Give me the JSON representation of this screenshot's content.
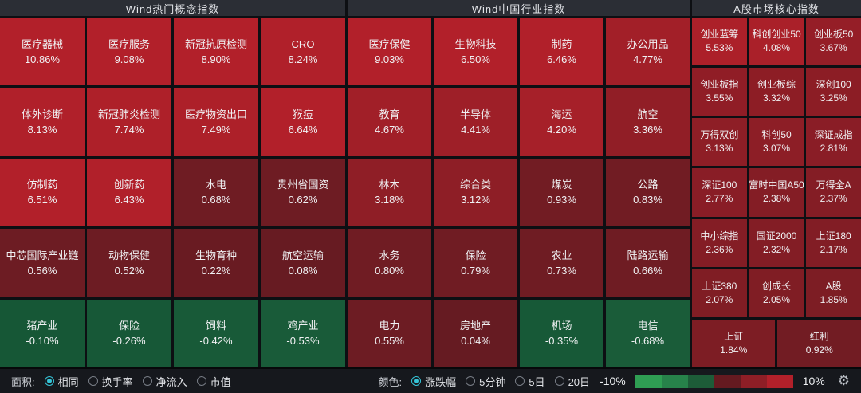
{
  "panels": [
    {
      "title": "Wind热门概念指数",
      "cells": [
        {
          "name": "医疗器械",
          "pct": "10.86%",
          "color": "#b2202a"
        },
        {
          "name": "医疗服务",
          "pct": "9.08%",
          "color": "#b2202a"
        },
        {
          "name": "新冠抗原检测",
          "pct": "8.90%",
          "color": "#b2202a"
        },
        {
          "name": "CRO",
          "pct": "8.24%",
          "color": "#b0202a"
        },
        {
          "name": "体外诊断",
          "pct": "8.13%",
          "color": "#b0202a"
        },
        {
          "name": "新冠肺炎检测",
          "pct": "7.74%",
          "color": "#ae2029"
        },
        {
          "name": "医疗物资出口",
          "pct": "7.49%",
          "color": "#ad2029"
        },
        {
          "name": "猴痘",
          "pct": "6.64%",
          "color": "#b2202a"
        },
        {
          "name": "仿制药",
          "pct": "6.51%",
          "color": "#b2202a"
        },
        {
          "name": "创新药",
          "pct": "6.43%",
          "color": "#b1202a"
        },
        {
          "name": "水电",
          "pct": "0.68%",
          "color": "#6f1c23"
        },
        {
          "name": "贵州省国资",
          "pct": "0.62%",
          "color": "#6e1c23"
        },
        {
          "name": "中芯国际产业链",
          "pct": "0.56%",
          "color": "#6d1c23"
        },
        {
          "name": "动物保健",
          "pct": "0.52%",
          "color": "#6d1c23"
        },
        {
          "name": "生物育种",
          "pct": "0.22%",
          "color": "#691b22"
        },
        {
          "name": "航空运输",
          "pct": "0.08%",
          "color": "#671b22"
        },
        {
          "name": "猪产业",
          "pct": "-0.10%",
          "color": "#165736"
        },
        {
          "name": "保险",
          "pct": "-0.26%",
          "color": "#175837"
        },
        {
          "name": "饲料",
          "pct": "-0.42%",
          "color": "#185a38"
        },
        {
          "name": "鸡产业",
          "pct": "-0.53%",
          "color": "#195b39"
        }
      ]
    },
    {
      "title": "Wind中国行业指数",
      "cells": [
        {
          "name": "医疗保健",
          "pct": "9.03%",
          "color": "#b2202a"
        },
        {
          "name": "生物科技",
          "pct": "6.50%",
          "color": "#b2202a"
        },
        {
          "name": "制药",
          "pct": "6.46%",
          "color": "#b1202a"
        },
        {
          "name": "办公用品",
          "pct": "4.77%",
          "color": "#a21f28"
        },
        {
          "name": "教育",
          "pct": "4.67%",
          "color": "#a11f28"
        },
        {
          "name": "半导体",
          "pct": "4.41%",
          "color": "#9e1f28"
        },
        {
          "name": "海运",
          "pct": "4.20%",
          "color": "#a62029"
        },
        {
          "name": "航空",
          "pct": "3.36%",
          "color": "#911e26"
        },
        {
          "name": "林木",
          "pct": "3.18%",
          "color": "#8f1e26"
        },
        {
          "name": "综合类",
          "pct": "3.12%",
          "color": "#8e1e26"
        },
        {
          "name": "煤炭",
          "pct": "0.93%",
          "color": "#721c23"
        },
        {
          "name": "公路",
          "pct": "0.83%",
          "color": "#711c23"
        },
        {
          "name": "水务",
          "pct": "0.80%",
          "color": "#701c23"
        },
        {
          "name": "保险",
          "pct": "0.79%",
          "color": "#701c23"
        },
        {
          "name": "农业",
          "pct": "0.73%",
          "color": "#6f1c23"
        },
        {
          "name": "陆路运输",
          "pct": "0.66%",
          "color": "#6f1c23"
        },
        {
          "name": "电力",
          "pct": "0.55%",
          "color": "#6d1c23"
        },
        {
          "name": "房地产",
          "pct": "0.04%",
          "color": "#661b22"
        },
        {
          "name": "机场",
          "pct": "-0.35%",
          "color": "#175937"
        },
        {
          "name": "电信",
          "pct": "-0.68%",
          "color": "#1a5c39"
        }
      ]
    },
    {
      "title": "A股市场核心指数",
      "cells": [
        {
          "name": "创业蓝筹",
          "pct": "5.53%",
          "color": "#ac2029"
        },
        {
          "name": "科创创业50",
          "pct": "4.08%",
          "color": "#aa2029"
        },
        {
          "name": "创业板50",
          "pct": "3.67%",
          "color": "#951e27"
        },
        {
          "name": "创业板指",
          "pct": "3.55%",
          "color": "#901d26"
        },
        {
          "name": "创业板综",
          "pct": "3.32%",
          "color": "#8d1d25"
        },
        {
          "name": "深创100",
          "pct": "3.25%",
          "color": "#8c1d25"
        },
        {
          "name": "万得双创",
          "pct": "3.13%",
          "color": "#8e1e26"
        },
        {
          "name": "科创50",
          "pct": "3.07%",
          "color": "#8d1e26"
        },
        {
          "name": "深证成指",
          "pct": "2.81%",
          "color": "#8a1d26"
        },
        {
          "name": "深证100",
          "pct": "2.77%",
          "color": "#891d26"
        },
        {
          "name": "富时中国A50",
          "pct": "2.38%",
          "color": "#841d25"
        },
        {
          "name": "万得全A",
          "pct": "2.37%",
          "color": "#841d25"
        },
        {
          "name": "中小综指",
          "pct": "2.36%",
          "color": "#841d25"
        },
        {
          "name": "国证2000",
          "pct": "2.32%",
          "color": "#831d25"
        },
        {
          "name": "上证180",
          "pct": "2.17%",
          "color": "#821d25"
        },
        {
          "name": "上证380",
          "pct": "2.07%",
          "color": "#801d24"
        },
        {
          "name": "创成长",
          "pct": "2.05%",
          "color": "#801d24"
        },
        {
          "name": "A股",
          "pct": "1.85%",
          "color": "#7d1d24"
        },
        {
          "name": "上证",
          "pct": "1.84%",
          "color": "#7d1d24",
          "wide": true
        },
        {
          "name": "红利",
          "pct": "0.92%",
          "color": "#721c23",
          "wide": true
        }
      ]
    }
  ],
  "toolbar": {
    "area_label": "面积:",
    "area_options": [
      {
        "label": "相同",
        "selected": true
      },
      {
        "label": "换手率",
        "selected": false
      },
      {
        "label": "净流入",
        "selected": false
      },
      {
        "label": "市值",
        "selected": false
      }
    ],
    "color_label": "颜色:",
    "color_options": [
      {
        "label": "涨跌幅",
        "selected": true
      },
      {
        "label": "5分钟",
        "selected": false
      },
      {
        "label": "5日",
        "selected": false
      },
      {
        "label": "20日",
        "selected": false
      }
    ],
    "scale_min": "-10%",
    "scale_max": "10%",
    "legend_colors": [
      "#2f9e53",
      "#27824a",
      "#1d5c38",
      "#641a20",
      "#8e1e26",
      "#b2202a"
    ],
    "settings_icon": "gear-icon",
    "accent_color": "#35c4d7"
  },
  "chart_data": {
    "type": "heatmap",
    "title": "指数涨跌幅热力图",
    "legend_range": [
      "-10%",
      "10%"
    ],
    "series": [
      {
        "name": "Wind热门概念指数",
        "categories": [
          "医疗器械",
          "医疗服务",
          "新冠抗原检测",
          "CRO",
          "体外诊断",
          "新冠肺炎检测",
          "医疗物资出口",
          "猴痘",
          "仿制药",
          "创新药",
          "水电",
          "贵州省国资",
          "中芯国际产业链",
          "动物保健",
          "生物育种",
          "航空运输",
          "猪产业",
          "保险",
          "饲料",
          "鸡产业"
        ],
        "values": [
          10.86,
          9.08,
          8.9,
          8.24,
          8.13,
          7.74,
          7.49,
          6.64,
          6.51,
          6.43,
          0.68,
          0.62,
          0.56,
          0.52,
          0.22,
          0.08,
          -0.1,
          -0.26,
          -0.42,
          -0.53
        ]
      },
      {
        "name": "Wind中国行业指数",
        "categories": [
          "医疗保健",
          "生物科技",
          "制药",
          "办公用品",
          "教育",
          "半导体",
          "海运",
          "航空",
          "林木",
          "综合类",
          "煤炭",
          "公路",
          "水务",
          "保险",
          "农业",
          "陆路运输",
          "电力",
          "房地产",
          "机场",
          "电信"
        ],
        "values": [
          9.03,
          6.5,
          6.46,
          4.77,
          4.67,
          4.41,
          4.2,
          3.36,
          3.18,
          3.12,
          0.93,
          0.83,
          0.8,
          0.79,
          0.73,
          0.66,
          0.55,
          0.04,
          -0.35,
          -0.68
        ]
      },
      {
        "name": "A股市场核心指数",
        "categories": [
          "创业蓝筹",
          "科创创业50",
          "创业板50",
          "创业板指",
          "创业板综",
          "深创100",
          "万得双创",
          "科创50",
          "深证成指",
          "深证100",
          "富时中国A50",
          "万得全A",
          "中小综指",
          "国证2000",
          "上证180",
          "上证380",
          "创成长",
          "A股",
          "上证",
          "红利"
        ],
        "values": [
          5.53,
          4.08,
          3.67,
          3.55,
          3.32,
          3.25,
          3.13,
          3.07,
          2.81,
          2.77,
          2.38,
          2.37,
          2.36,
          2.32,
          2.17,
          2.07,
          2.05,
          1.85,
          1.84,
          0.92
        ]
      }
    ]
  }
}
